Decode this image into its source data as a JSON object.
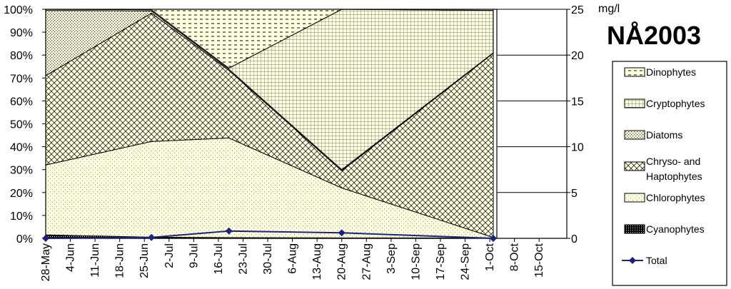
{
  "chart_data": {
    "type": "area",
    "title": "NÅ2003",
    "y2_unit_label": "mg/l",
    "x_ticks": [
      "28-May",
      "4-Jun",
      "11-Jun",
      "18-Jun",
      "25-Jun",
      "2-Jul",
      "9-Jul",
      "16-Jul",
      "23-Jul",
      "30-Jul",
      "6-Aug",
      "13-Aug",
      "20-Aug",
      "27-Aug",
      "3-Sep",
      "10-Sep",
      "17-Sep",
      "24-Sep",
      "1-Oct",
      "8-Oct",
      "15-Oct"
    ],
    "y_ticks": [
      "0%",
      "10%",
      "20%",
      "30%",
      "40%",
      "50%",
      "60%",
      "70%",
      "80%",
      "90%",
      "100%"
    ],
    "y2_ticks": [
      "0",
      "5",
      "10",
      "15",
      "20",
      "25"
    ],
    "ylim": [
      0,
      100
    ],
    "y2lim": [
      0,
      25
    ],
    "x_sample_dates": [
      "28-May",
      "27-Jun",
      "19-Jul",
      "20-Aug",
      "2-Oct"
    ],
    "stack_order": [
      "Cyanophytes",
      "Chlorophytes",
      "Chryso- and Haptophytes",
      "Diatoms",
      "Cryptophytes",
      "Dinophytes"
    ],
    "series": [
      {
        "name": "Cyanophytes",
        "values": [
          1.5,
          0.5,
          0.3,
          0.2,
          0.2
        ]
      },
      {
        "name": "Chlorophytes",
        "values": [
          30.5,
          41.8,
          43.5,
          21.8,
          0.2
        ]
      },
      {
        "name": "Chryso- and Haptophytes",
        "values": [
          39.0,
          56.0,
          29.5,
          7.5,
          80.4
        ]
      },
      {
        "name": "Diatoms",
        "values": [
          28.5,
          1.0,
          0.5,
          0.5,
          0.2
        ]
      },
      {
        "name": "Cryptophytes",
        "values": [
          0.5,
          0.5,
          0.5,
          70.0,
          18.5
        ]
      },
      {
        "name": "Dinophytes",
        "values": [
          0.0,
          0.2,
          25.7,
          0.0,
          0.5
        ]
      }
    ],
    "total_series": {
      "name": "Total",
      "axis": "secondary",
      "color": "#1a237e",
      "values": [
        0.0,
        0.1,
        0.8,
        0.6,
        0.0
      ]
    },
    "legend": {
      "placement": "right",
      "entries": [
        "Dinophytes",
        "Cryptophytes",
        "Diatoms",
        "Chryso- and Haptophytes",
        "Chlorophytes",
        "Cyanophytes",
        "Total"
      ]
    },
    "colors": {
      "fill": "#ffffe0",
      "line": "#000000",
      "total": "#1a237e"
    }
  }
}
